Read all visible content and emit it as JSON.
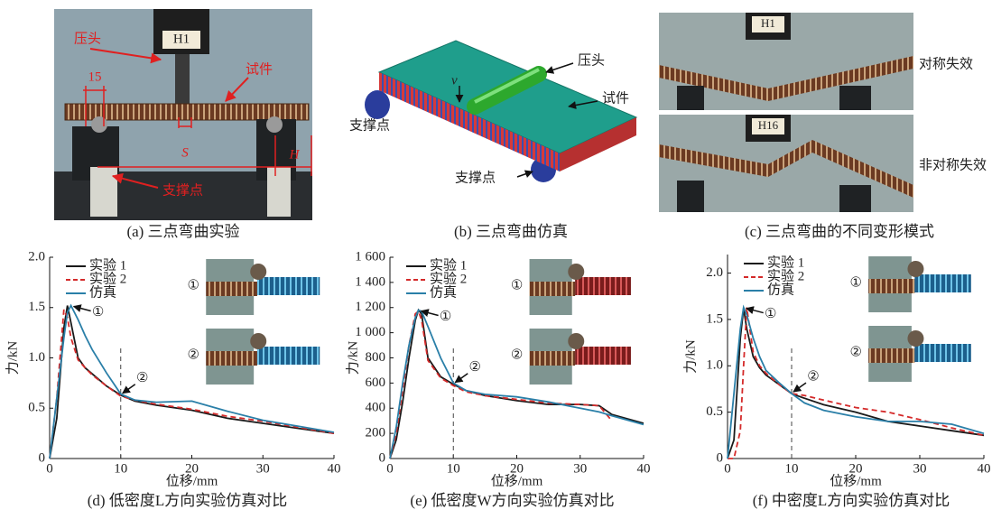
{
  "panels": {
    "a": {
      "caption": "(a) 三点弯曲实验",
      "press": "压头",
      "head_id": "H1",
      "width_label": "15",
      "specimen": "试件",
      "span": "S",
      "height": "H",
      "support": "支撑点"
    },
    "b": {
      "caption": "(b) 三点弯曲仿真",
      "press": "压头",
      "velocity": "v",
      "specimen": "试件",
      "support_left": "支撑点",
      "support_right": "支撑点"
    },
    "c": {
      "caption": "(c) 三点弯曲的不同变形模式",
      "head_top": "H1",
      "head_bottom": "H16",
      "mode_top": "对称失效",
      "mode_bottom": "非对称失效"
    }
  },
  "chart_data": [
    {
      "type": "line",
      "caption": "(d) 低密度L方向实验仿真对比",
      "x_label": "位移/mm",
      "y_label": "力/kN",
      "x": [
        0,
        1,
        2,
        2.5,
        3,
        4,
        5,
        6,
        8,
        10,
        12,
        15,
        20,
        25,
        30,
        35,
        40
      ],
      "series": [
        {
          "name": "实验 1",
          "color": "#1a1a1a",
          "line_style": "solid",
          "values": [
            0,
            0.4,
            1.3,
            1.52,
            1.35,
            1.0,
            0.9,
            0.84,
            0.72,
            0.63,
            0.57,
            0.53,
            0.48,
            0.4,
            0.35,
            0.3,
            0.25
          ]
        },
        {
          "name": "实验 2",
          "color": "#d42a2a",
          "line_style": "dashed",
          "values": [
            0,
            0.6,
            1.48,
            1.4,
            1.2,
            0.98,
            0.9,
            0.83,
            0.72,
            0.62,
            0.58,
            0.54,
            0.49,
            0.42,
            0.37,
            0.31,
            0.25
          ]
        },
        {
          "name": "仿真",
          "color": "#2a7fa8",
          "line_style": "solid",
          "values": [
            0,
            0.6,
            1.2,
            1.45,
            1.52,
            1.38,
            1.22,
            1.08,
            0.85,
            0.64,
            0.58,
            0.56,
            0.57,
            0.47,
            0.38,
            0.32,
            0.26
          ]
        }
      ],
      "xlim": [
        0,
        40
      ],
      "xticks": [
        0,
        10,
        20,
        30,
        40
      ],
      "ylim": [
        0,
        2
      ],
      "yticks": [
        0,
        0.5,
        {
          "value": 1,
          "label": "1.0"
        },
        1.5,
        {
          "value": 2,
          "label": "2.0"
        }
      ],
      "vline_x": 10,
      "annotations": [
        "①",
        "②"
      ],
      "grid": false
    },
    {
      "type": "line",
      "caption": "(e) 低密度W方向实验仿真对比",
      "x_label": "位移/mm",
      "y_label": "力/kN",
      "x": [
        0,
        1,
        2,
        3,
        4,
        4.5,
        5,
        6,
        8,
        10,
        12,
        15,
        20,
        25,
        30,
        33,
        35,
        40
      ],
      "series": [
        {
          "name": "实验 1",
          "color": "#1a1a1a",
          "line_style": "solid",
          "values": [
            0,
            150,
            450,
            800,
            1100,
            1180,
            1150,
            800,
            650,
            590,
            540,
            500,
            460,
            430,
            430,
            420,
            350,
            280
          ]
        },
        {
          "name": "实验 2",
          "color": "#d42a2a",
          "line_style": "dashed",
          "values": [
            0,
            200,
            550,
            900,
            1150,
            1170,
            1100,
            780,
            640,
            580,
            530,
            500,
            470,
            440,
            430,
            420,
            300,
            null
          ]
        },
        {
          "name": "仿真",
          "color": "#2a7fa8",
          "line_style": "solid",
          "values": [
            0,
            250,
            600,
            900,
            1120,
            1180,
            1170,
            1050,
            800,
            600,
            540,
            510,
            490,
            450,
            400,
            370,
            340,
            270
          ]
        }
      ],
      "xlim": [
        0,
        40
      ],
      "xticks": [
        0,
        10,
        20,
        30,
        40
      ],
      "ylim": [
        0,
        1600
      ],
      "yticks": [
        0,
        200,
        400,
        600,
        800,
        {
          "value": 1000,
          "label": "1 000"
        },
        {
          "value": 1200,
          "label": "1 200"
        },
        {
          "value": 1400,
          "label": "1 400"
        },
        {
          "value": 1600,
          "label": "1 600"
        }
      ],
      "vline_x": 10,
      "annotations": [
        "①",
        "②"
      ],
      "grid": false
    },
    {
      "type": "line",
      "caption": "(f) 中密度L方向实验仿真对比",
      "x_label": "位移/mm",
      "y_label": "力/kN",
      "x": [
        0,
        1,
        2,
        2.5,
        3,
        4,
        5,
        6,
        8,
        10,
        12,
        15,
        20,
        25,
        30,
        35,
        40
      ],
      "series": [
        {
          "name": "实验 1",
          "color": "#1a1a1a",
          "line_style": "solid",
          "values": [
            0,
            0.2,
            1.3,
            1.62,
            1.4,
            1.1,
            0.98,
            0.9,
            0.8,
            0.7,
            0.65,
            0.58,
            0.5,
            0.4,
            0.35,
            0.3,
            0.25
          ]
        },
        {
          "name": "实验 2",
          "color": "#d42a2a",
          "line_style": "dashed",
          "values": [
            0,
            0,
            0.3,
            1.0,
            1.63,
            1.15,
            1.0,
            0.92,
            0.8,
            0.7,
            0.68,
            0.63,
            0.55,
            0.5,
            0.42,
            0.33,
            0.25
          ]
        },
        {
          "name": "仿真",
          "color": "#2a7fa8",
          "line_style": "solid",
          "values": [
            0,
            0.7,
            1.4,
            1.63,
            1.55,
            1.3,
            1.1,
            0.95,
            0.82,
            0.7,
            0.6,
            0.52,
            0.45,
            0.4,
            0.4,
            0.37,
            0.27
          ]
        }
      ],
      "xlim": [
        0,
        40
      ],
      "xticks": [
        0,
        10,
        20,
        30,
        40
      ],
      "ylim": [
        0,
        2.2
      ],
      "yticks": [
        0,
        0.5,
        {
          "value": 1,
          "label": "1.0"
        },
        1.5,
        {
          "value": 2,
          "label": "2.0"
        }
      ],
      "vline_x": 10,
      "annotations": [
        "①",
        "②"
      ],
      "grid": false
    }
  ]
}
